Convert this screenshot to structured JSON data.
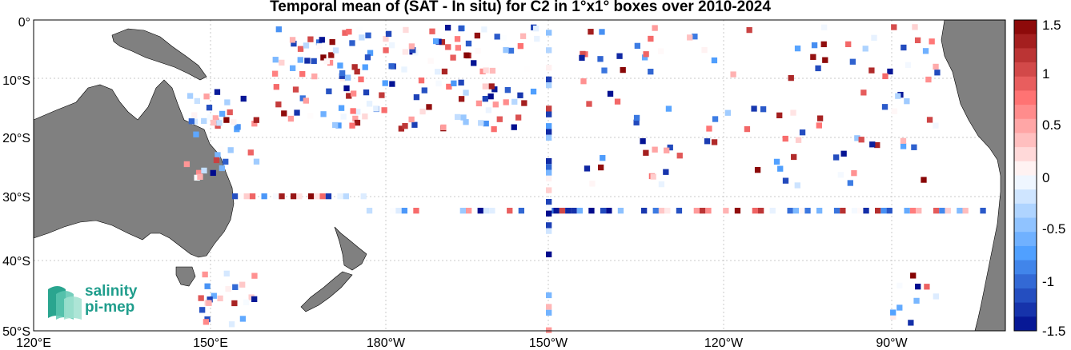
{
  "title": "Temporal mean of (SAT - In situ) for C2 in 1°x1° boxes over 2010-2024",
  "map": {
    "lon_labels": [
      "120°E",
      "150°E",
      "180°W",
      "150°W",
      "120°W",
      "90°W"
    ],
    "lat_labels": [
      "0°",
      "10°S",
      "20°S",
      "30°S",
      "40°S",
      "50°S"
    ],
    "colorbar_ticks": [
      "1.5",
      "1",
      "0.5",
      "0",
      "-0.5",
      "-1",
      "-1.5"
    ],
    "colorbar_range": [
      -1.5,
      1.5
    ],
    "colors": {
      "land": "#808080",
      "grid": "#bdbdbd",
      "pos": "#c00000",
      "neg": "#0033cc"
    }
  },
  "logo": {
    "line1": "salinity",
    "line2": "pi-mep"
  }
}
